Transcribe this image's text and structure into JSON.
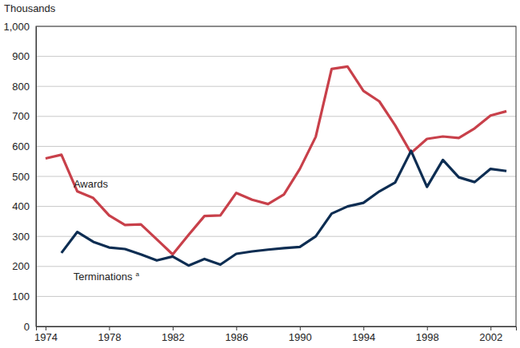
{
  "chart_data": {
    "type": "line",
    "y_label": "Thousands",
    "x": [
      1974,
      1975,
      1976,
      1977,
      1978,
      1979,
      1980,
      1981,
      1982,
      1983,
      1984,
      1985,
      1986,
      1987,
      1988,
      1989,
      1990,
      1991,
      1992,
      1993,
      1994,
      1995,
      1996,
      1997,
      1998,
      1999,
      2000,
      2001,
      2002,
      2003
    ],
    "series": [
      {
        "name": "Awards",
        "color": "#c8404a",
        "values": [
          560,
          572,
          450,
          428,
          370,
          338,
          340,
          290,
          240,
          305,
          368,
          370,
          445,
          422,
          408,
          440,
          525,
          632,
          858,
          866,
          785,
          750,
          670,
          578,
          625,
          633,
          628,
          660,
          703,
          717
        ]
      },
      {
        "name": "Terminations",
        "color": "#0d2d52",
        "values": [
          null,
          245,
          315,
          282,
          263,
          258,
          240,
          220,
          233,
          203,
          225,
          206,
          242,
          250,
          256,
          261,
          265,
          300,
          376,
          400,
          412,
          450,
          480,
          585,
          465,
          555,
          497,
          481,
          525,
          518
        ]
      }
    ],
    "annotations": [
      {
        "text": "a",
        "series": 1
      }
    ],
    "xlim": [
      1973.4,
      2003.6
    ],
    "xticks": [
      1974,
      1978,
      1982,
      1986,
      1990,
      1994,
      1998,
      2002
    ],
    "ylim": [
      0,
      1000
    ],
    "yticks": [
      0,
      100,
      200,
      300,
      400,
      500,
      600,
      700,
      800,
      900,
      {
        "value": 1000,
        "label": "1,000"
      }
    ],
    "grid": true
  }
}
